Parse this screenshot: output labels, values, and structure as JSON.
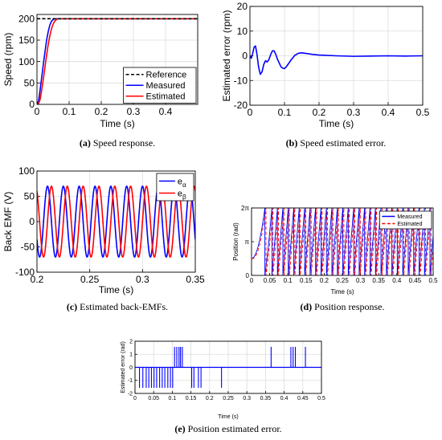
{
  "chart_data": [
    {
      "id": "a",
      "type": "line",
      "caption_letter": "(a)",
      "caption_text": "Speed response.",
      "xlabel": "Time (s)",
      "ylabel": "Speed (rpm)",
      "xlim": [
        0,
        0.5
      ],
      "ylim": [
        0,
        210
      ],
      "xticks": [
        0,
        0.1,
        0.2,
        0.3,
        0.4
      ],
      "yticks": [
        0,
        50,
        100,
        150,
        200
      ],
      "grid": true,
      "legend": "bottom-right",
      "series": [
        {
          "name": "Reference",
          "color": "#000000",
          "dash": "dashed",
          "x": [
            0,
            0.5
          ],
          "y": [
            200,
            200
          ]
        },
        {
          "name": "Measured",
          "color": "#0000ff",
          "dash": "solid",
          "x": [
            0,
            0.005,
            0.01,
            0.015,
            0.02,
            0.025,
            0.03,
            0.035,
            0.04,
            0.045,
            0.05,
            0.055,
            0.06,
            0.065,
            0.07,
            0.5
          ],
          "y": [
            0,
            8,
            35,
            65,
            95,
            123,
            150,
            170,
            185,
            194,
            198,
            200,
            200,
            200,
            200,
            200
          ]
        },
        {
          "name": "Estimated",
          "color": "#ff0000",
          "dash": "solid",
          "x": [
            0,
            0.005,
            0.01,
            0.015,
            0.02,
            0.025,
            0.03,
            0.035,
            0.04,
            0.045,
            0.05,
            0.055,
            0.06,
            0.065,
            0.07,
            0.075,
            0.5
          ],
          "y": [
            0,
            2,
            12,
            35,
            60,
            88,
            115,
            140,
            160,
            176,
            187,
            194,
            198,
            200,
            200,
            200,
            200
          ]
        }
      ]
    },
    {
      "id": "b",
      "type": "line",
      "caption_letter": "(b)",
      "caption_text": "Speed estimated error.",
      "xlabel": "Time (s)",
      "ylabel": "Estimated error (rpm)",
      "xlim": [
        0,
        0.5
      ],
      "ylim": [
        -20,
        20
      ],
      "xticks": [
        0,
        0.1,
        0.2,
        0.3,
        0.4,
        0.5
      ],
      "yticks": [
        -20,
        -10,
        0,
        10,
        20
      ],
      "grid": true,
      "series": [
        {
          "name": "",
          "color": "#0000ff",
          "dash": "solid",
          "x": [
            0,
            0.004,
            0.008,
            0.012,
            0.016,
            0.02,
            0.025,
            0.03,
            0.035,
            0.04,
            0.045,
            0.05,
            0.055,
            0.06,
            0.065,
            0.07,
            0.075,
            0.08,
            0.085,
            0.09,
            0.095,
            0.1,
            0.105,
            0.11,
            0.12,
            0.13,
            0.14,
            0.15,
            0.16,
            0.18,
            0.2,
            0.25,
            0.3,
            0.35,
            0.4,
            0.45,
            0.5
          ],
          "y": [
            0,
            -1,
            1,
            3.5,
            4,
            1,
            -4.5,
            -7.5,
            -6.5,
            -3.5,
            -2,
            -2.5,
            -1.5,
            0.5,
            2,
            2,
            0.5,
            -1.5,
            -3,
            -4.5,
            -5,
            -5.2,
            -4.5,
            -3.5,
            -1.5,
            0.2,
            1,
            1.2,
            1,
            0.6,
            0.3,
            0,
            -0.2,
            -0.1,
            0,
            -0.1,
            0
          ]
        }
      ]
    },
    {
      "id": "c",
      "type": "line",
      "caption_letter": "(c)",
      "caption_text": "Estimated back-EMFs.",
      "xlabel": "Time (s)",
      "ylabel": "Back EMF (V)",
      "xlim": [
        0.2,
        0.35
      ],
      "ylim": [
        -100,
        100
      ],
      "xticks": [
        0.2,
        0.25,
        0.3,
        0.35
      ],
      "yticks": [
        -100,
        -50,
        0,
        50,
        100
      ],
      "grid": true,
      "legend": "top-right",
      "series": [
        {
          "name": "e",
          "sub": "α",
          "color": "#0000ff",
          "amplitude": 70,
          "frequency_hz": 66.67,
          "phase_deg": 90
        },
        {
          "name": "e",
          "sub": "β",
          "color": "#ff0000",
          "amplitude": 70,
          "frequency_hz": 66.67,
          "phase_deg": 0
        }
      ]
    },
    {
      "id": "d",
      "type": "line",
      "caption_letter": "(d)",
      "caption_text": "Position response.",
      "xlabel": "Time (s)",
      "ylabel": "Position (rad)",
      "xlim": [
        0,
        0.5
      ],
      "ylim": [
        0,
        6.2832
      ],
      "xticks": [
        0,
        0.05,
        0.1,
        0.15,
        0.2,
        0.25,
        0.3,
        0.35,
        0.4,
        0.45,
        0.5
      ],
      "ytick_labels": [
        "0",
        "π",
        "2π"
      ],
      "grid": true,
      "legend": "top-right",
      "series": [
        {
          "name": "Measured",
          "color": "#0000ff",
          "dash": "solid"
        },
        {
          "name": "Estimated",
          "color": "#ff0000",
          "dash": "dashed"
        }
      ],
      "initial_position_rad": 1.57,
      "speed_rad_per_s": 419
    },
    {
      "id": "e",
      "type": "line",
      "caption_letter": "(e)",
      "caption_text": "Position estimated error.",
      "xlabel": "Time (s)",
      "ylabel": "Estimated error (rad)",
      "xlim": [
        0,
        0.5
      ],
      "ylim": [
        -2,
        2
      ],
      "xticks": [
        0,
        0.05,
        0.1,
        0.15,
        0.2,
        0.25,
        0.3,
        0.35,
        0.4,
        0.45,
        0.5
      ],
      "yticks": [
        -2,
        -1,
        0,
        1,
        2
      ],
      "grid": true,
      "series": [
        {
          "name": "",
          "color": "#0000ff",
          "spikes_x": [
            0.012,
            0.021,
            0.03,
            0.037,
            0.044,
            0.051,
            0.058,
            0.066,
            0.073,
            0.08,
            0.088,
            0.095,
            0.101,
            0.106,
            0.112,
            0.118,
            0.122,
            0.127,
            0.152,
            0.158,
            0.17,
            0.177,
            0.232,
            0.365,
            0.418,
            0.424,
            0.43,
            0.457
          ],
          "spikes_y": [
            -1.57,
            -1.57,
            -1.57,
            -1.57,
            -1.57,
            -1.57,
            -1.57,
            -1.57,
            -1.57,
            -1.57,
            -1.57,
            -1.57,
            -1.57,
            1.57,
            1.57,
            1.57,
            1.57,
            1.57,
            -1.57,
            -1.57,
            -1.57,
            -1.57,
            -1.57,
            1.57,
            1.57,
            1.57,
            1.57,
            1.57
          ]
        }
      ]
    }
  ]
}
